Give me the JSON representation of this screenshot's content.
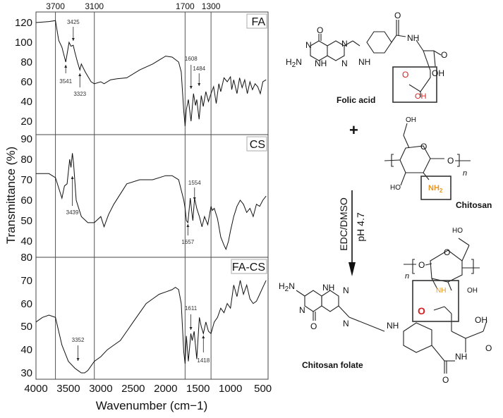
{
  "chart_data": {
    "type": "line",
    "title": "",
    "xlabel": "Wavenumber (cm−1)",
    "ylabel": "Transmittance (%)",
    "xlim": [
      4000,
      420
    ],
    "x_ticks": [
      "4000",
      "3500",
      "3000",
      "2500",
      "2000",
      "1500",
      "1000",
      "500"
    ],
    "reference_lines": [
      "3700",
      "3100",
      "1700",
      "1300"
    ],
    "grid": false,
    "panels": [
      {
        "name": "FA",
        "ylim": [
          10,
          125
        ],
        "y_ticks": [
          "120",
          "100",
          "80",
          "60",
          "40",
          "20"
        ],
        "annotations": [
          "3425",
          "3541",
          "3323",
          "1608",
          "1484"
        ],
        "series": [
          {
            "name": "FA",
            "x": [
              4000,
              3800,
              3700,
              3650,
              3600,
              3541,
              3490,
              3460,
              3425,
              3400,
              3360,
              3323,
              3300,
              3240,
              3150,
              3100,
              3000,
              2950,
              2850,
              2750,
              2600,
              2400,
              2200,
              2100,
              2000,
              1900,
              1800,
              1760,
              1720,
              1700,
              1680,
              1650,
              1608,
              1570,
              1540,
              1520,
              1484,
              1450,
              1420,
              1380,
              1340,
              1300,
              1260,
              1220,
              1180,
              1150,
              1100,
              1050,
              1000,
              980,
              950,
              900,
              860,
              820,
              780,
              740,
              700,
              660,
              620,
              580,
              540,
              500,
              450
            ],
            "values": [
              120,
              121,
              122,
              102,
              95,
              80,
              100,
              96,
              97,
              90,
              80,
              72,
              78,
              70,
              60,
              58,
              60,
              58,
              62,
              63,
              64,
              72,
              78,
              82,
              86,
              85,
              80,
              70,
              30,
              15,
              32,
              42,
              20,
              48,
              36,
              42,
              22,
              46,
              35,
              50,
              40,
              48,
              55,
              38,
              58,
              50,
              64,
              60,
              65,
              52,
              62,
              48,
              64,
              54,
              62,
              48,
              60,
              52,
              58,
              55,
              48,
              60,
              62
            ]
          }
        ]
      },
      {
        "name": "CS",
        "ylim": [
          32,
          90
        ],
        "y_ticks": [
          "90",
          "80",
          "70",
          "60",
          "50",
          "40"
        ],
        "annotations": [
          "3439",
          "1554",
          "1657"
        ],
        "series": [
          {
            "name": "CS",
            "x": [
              4000,
              3800,
              3700,
              3650,
              3600,
              3560,
              3520,
              3480,
              3460,
              3439,
              3420,
              3380,
              3300,
              3200,
              3100,
              3000,
              2950,
              2880,
              2800,
              2600,
              2400,
              2200,
              2000,
              1900,
              1800,
              1720,
              1700,
              1680,
              1657,
              1620,
              1600,
              1580,
              1554,
              1520,
              1480,
              1440,
              1400,
              1350,
              1300,
              1280,
              1250,
              1200,
              1150,
              1100,
              1070,
              1030,
              1000,
              950,
              900,
              850,
              800,
              750,
              700,
              650,
              600,
              550,
              500,
              450
            ],
            "values": [
              73,
              73,
              71,
              66,
              61,
              67,
              68,
              80,
              76,
              83,
              78,
              60,
              52,
              49,
              49,
              52,
              47,
              53,
              58,
              68,
              70,
              70,
              72,
              72,
              70,
              60,
              56,
              50,
              49,
              61,
              55,
              50,
              61,
              56,
              52,
              47,
              52,
              48,
              57,
              55,
              56,
              51,
              42,
              38,
              36,
              40,
              45,
              52,
              57,
              60,
              58,
              54,
              56,
              52,
              58,
              57,
              60,
              62
            ]
          }
        ]
      },
      {
        "name": "FA-CS",
        "ylim": [
          27,
          80
        ],
        "y_ticks": [
          "80",
          "70",
          "60",
          "50",
          "40",
          "30"
        ],
        "annotations": [
          "3352",
          "1611",
          "1418"
        ],
        "series": [
          {
            "name": "FA-CS",
            "x": [
              4000,
              3900,
              3800,
              3700,
              3650,
              3600,
              3500,
              3400,
              3352,
              3300,
              3250,
              3200,
              3100,
              3000,
              2900,
              2800,
              2700,
              2600,
              2500,
              2400,
              2300,
              2200,
              2100,
              2000,
              1900,
              1850,
              1800,
              1760,
              1720,
              1700,
              1680,
              1650,
              1611,
              1590,
              1560,
              1520,
              1480,
              1450,
              1418,
              1380,
              1340,
              1300,
              1250,
              1200,
              1150,
              1100,
              1050,
              1000,
              950,
              900,
              850,
              800,
              750,
              700,
              650,
              600,
              550,
              500,
              450
            ],
            "values": [
              52,
              54,
              55,
              54,
              48,
              42,
              35,
              32,
              31,
              30,
              30,
              31,
              35,
              37,
              40,
              42,
              44,
              48,
              52,
              56,
              60,
              62,
              64,
              65,
              66,
              67,
              66,
              60,
              39,
              34,
              46,
              35,
              47,
              44,
              48,
              36,
              54,
              50,
              47,
              52,
              48,
              47,
              52,
              54,
              58,
              56,
              60,
              58,
              68,
              63,
              70,
              64,
              68,
              62,
              60,
              61,
              64,
              67,
              70
            ]
          }
        ]
      }
    ]
  },
  "scheme": {
    "folic_acid_label": "Folic acid",
    "chitosan_label": "Chitosan",
    "product_label": "Chitosan folate",
    "plus": "+",
    "reagent_top": "EDC/DMSO",
    "reagent_bottom": "pH 4.7",
    "highlight_red": "#d42020",
    "highlight_orange": "#e8961e",
    "atoms": {
      "O": "O",
      "N": "N",
      "NH": "NH",
      "H2N_main": "H",
      "H2N_sub": "2",
      "H2N_end": "N",
      "OH": "OH",
      "HO": "HO",
      "NH2_main": "NH",
      "NH2_sub": "2",
      "n": "n"
    }
  }
}
